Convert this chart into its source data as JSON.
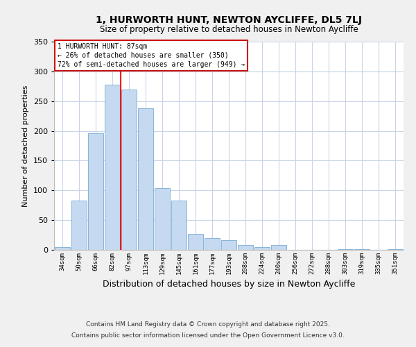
{
  "title": "1, HURWORTH HUNT, NEWTON AYCLIFFE, DL5 7LJ",
  "subtitle": "Size of property relative to detached houses in Newton Aycliffe",
  "xlabel": "Distribution of detached houses by size in Newton Aycliffe",
  "ylabel": "Number of detached properties",
  "bar_color": "#c5d9f0",
  "bar_edge_color": "#7aadd4",
  "categories": [
    "34sqm",
    "50sqm",
    "66sqm",
    "82sqm",
    "97sqm",
    "113sqm",
    "129sqm",
    "145sqm",
    "161sqm",
    "177sqm",
    "193sqm",
    "208sqm",
    "224sqm",
    "240sqm",
    "256sqm",
    "272sqm",
    "288sqm",
    "303sqm",
    "319sqm",
    "335sqm",
    "351sqm"
  ],
  "values": [
    5,
    83,
    196,
    278,
    270,
    238,
    104,
    83,
    27,
    20,
    16,
    8,
    5,
    8,
    0,
    0,
    0,
    1,
    1,
    0,
    1
  ],
  "ylim": [
    0,
    350
  ],
  "yticks": [
    0,
    50,
    100,
    150,
    200,
    250,
    300,
    350
  ],
  "redline_x": 3.5,
  "annotation_title": "1 HURWORTH HUNT: 87sqm",
  "annotation_line1": "← 26% of detached houses are smaller (350)",
  "annotation_line2": "72% of semi-detached houses are larger (949) →",
  "footnote1": "Contains HM Land Registry data © Crown copyright and database right 2025.",
  "footnote2": "Contains public sector information licensed under the Open Government Licence v3.0.",
  "background_color": "#f0f0f0",
  "plot_bg_color": "#ffffff",
  "grid_color": "#c8d4e8"
}
